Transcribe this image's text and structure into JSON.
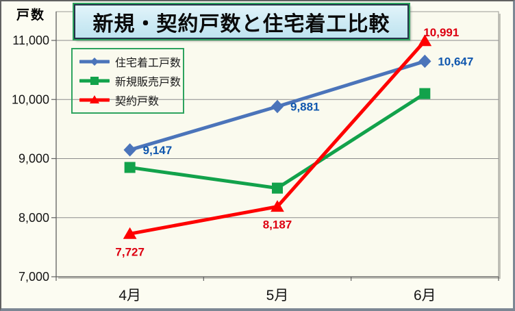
{
  "chart": {
    "title": "新規・契約戸数と住宅着工比較",
    "y_axis_title": "戸数"
  },
  "chart_data": {
    "type": "line",
    "title": "新規・契約戸数と住宅着工比較",
    "y_axis_title": "戸数",
    "categories": [
      "4月",
      "5月",
      "6月"
    ],
    "ylim": [
      7000,
      11000
    ],
    "ytick_step": 1000,
    "y_ticks": [
      {
        "value": 7000,
        "label": "7,000"
      },
      {
        "value": 8000,
        "label": "8,000"
      },
      {
        "value": 9000,
        "label": "9,000"
      },
      {
        "value": 10000,
        "label": "10,000"
      },
      {
        "value": 11000,
        "label": "11,000"
      }
    ],
    "grid": true,
    "legend_position": "upper-left-inside",
    "series": [
      {
        "name": "住宅着工戸数",
        "marker": "diamond",
        "line_color": "#4b74ba",
        "label_color": "#1057ae",
        "values": [
          9147,
          9881,
          10647
        ],
        "point_labels": [
          "9,147",
          "9,881",
          "10,647"
        ],
        "label_placements": [
          "right",
          "right",
          "right"
        ]
      },
      {
        "name": "新規販売戸数",
        "marker": "square",
        "line_color": "#12a24b",
        "label_color": "",
        "values": [
          8850,
          8500,
          10100
        ],
        "point_labels": [
          "",
          "",
          ""
        ],
        "label_placements": [
          "",
          "",
          ""
        ]
      },
      {
        "name": "契約戸数",
        "marker": "triangle",
        "line_color": "#fe0000",
        "label_color": "#dd0011",
        "values": [
          7727,
          8187,
          10991
        ],
        "point_labels": [
          "7,727",
          "8,187",
          "10,991"
        ],
        "label_placements": [
          "below",
          "below",
          "above"
        ]
      }
    ]
  }
}
